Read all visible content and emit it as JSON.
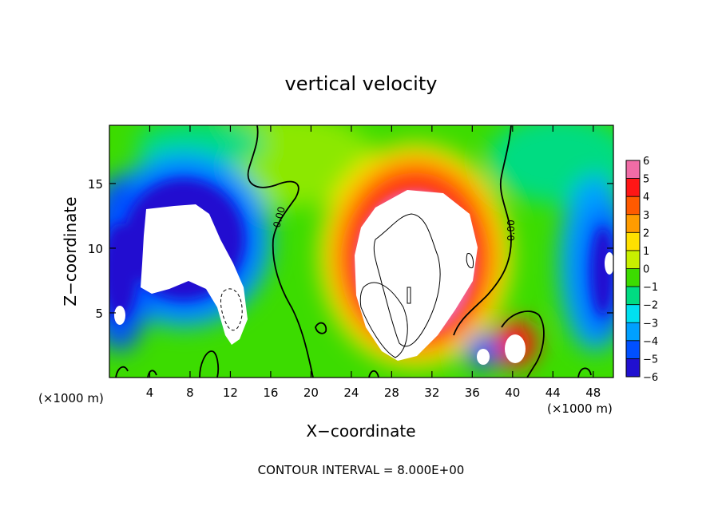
{
  "chart_data": {
    "type": "heatmap",
    "title": "vertical velocity",
    "xlabel": "X−coordinate",
    "ylabel": "Z−coordinate",
    "x_unit_left": "(×1000 m)",
    "x_unit_right": "(×1000 m)",
    "footer": "CONTOUR INTERVAL = 8.000E+00",
    "xlim": [
      0,
      50
    ],
    "ylim": [
      0,
      19.5
    ],
    "x_ticks": [
      4,
      8,
      12,
      16,
      20,
      24,
      28,
      32,
      36,
      40,
      44,
      48
    ],
    "y_ticks": [
      5,
      10,
      15
    ],
    "colorbar": {
      "range": [
        -6,
        6
      ],
      "ticks": [
        "6",
        "5",
        "4",
        "3",
        "2",
        "1",
        "0",
        "−1",
        "−2",
        "−3",
        "−4",
        "−5",
        "−6"
      ],
      "colors": [
        "#f06ca6",
        "#ff1616",
        "#ff5a00",
        "#ff9c00",
        "#ffe000",
        "#c8f000",
        "#3cdc00",
        "#00dc82",
        "#00e0f0",
        "#00a0ff",
        "#0050ff",
        "#2010d0",
        "#7000b0"
      ]
    },
    "contour_labels": [
      "0.00",
      "0.00"
    ],
    "features": [
      {
        "kind": "updraft",
        "x": 30,
        "z": 9.5,
        "rx": 8,
        "rz": 7.5,
        "w": 9
      },
      {
        "kind": "downdraft",
        "x": 8,
        "z": 9,
        "rx": 6,
        "rz": 4.5,
        "w": -9
      },
      {
        "kind": "downdraft",
        "x": 48,
        "z": 8,
        "rx": 3,
        "rz": 5,
        "w": -5
      },
      {
        "kind": "updraft",
        "x": 40,
        "z": 2,
        "rx": 2,
        "rz": 2,
        "w": 9
      },
      {
        "kind": "downdraft",
        "x": 37,
        "z": 1.8,
        "rx": 1.5,
        "rz": 1.5,
        "w": -7
      },
      {
        "kind": "downdraft",
        "x": 1,
        "z": 5,
        "rx": 1.5,
        "rz": 3,
        "w": -8
      }
    ]
  }
}
